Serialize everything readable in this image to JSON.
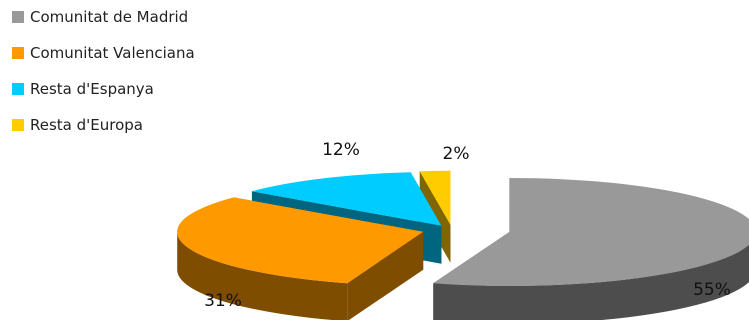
{
  "chart_data": {
    "type": "pie",
    "style": "3d-exploded",
    "legend_position": "top-left",
    "categories": [
      "Comunitat de Madrid",
      "Comunitat Valenciana",
      "Resta d'Espanya",
      "Resta d'Europa"
    ],
    "values": [
      55,
      31,
      12,
      2
    ],
    "labels": [
      "55%",
      "31%",
      "12%",
      "2%"
    ],
    "colors": [
      "#999999",
      "#FF9900",
      "#00CCFF",
      "#FFCC00"
    ],
    "side_colors": [
      "#4D4D4D",
      "#7F4D00",
      "#006680",
      "#806600"
    ]
  }
}
